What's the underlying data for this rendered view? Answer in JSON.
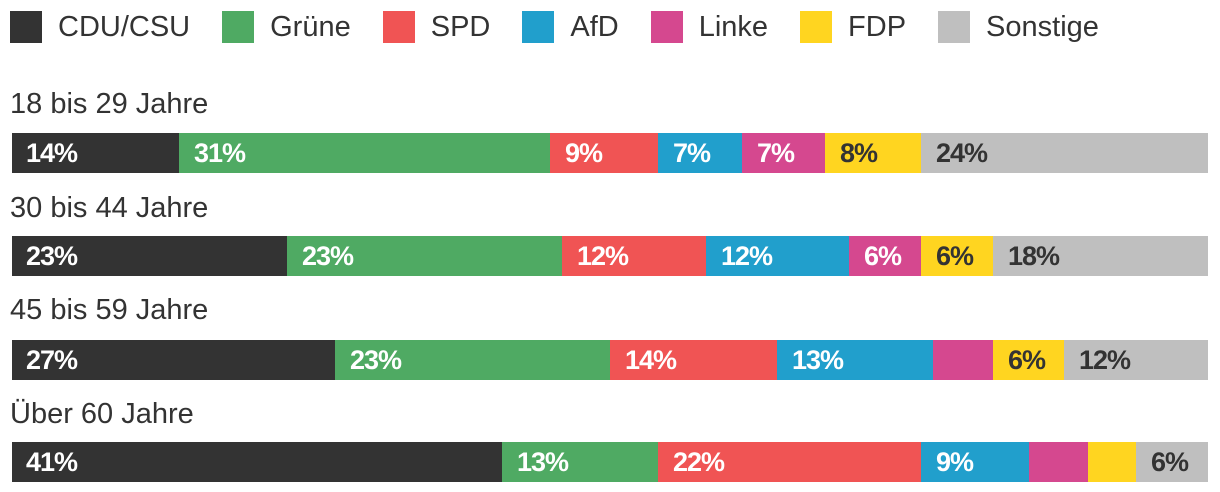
{
  "chart_data": {
    "type": "bar",
    "orientation": "horizontal",
    "stacked": true,
    "unit": "%",
    "legend_position": "top-left",
    "series": [
      {
        "name": "CDU/CSU",
        "color": "#333333",
        "label_color": "#ffffff",
        "values": [
          14,
          23,
          27,
          41
        ],
        "labels": [
          "14%",
          "23%",
          "27%",
          "41%"
        ]
      },
      {
        "name": "Grüne",
        "color": "#4faa63",
        "label_color": "#ffffff",
        "values": [
          31,
          23,
          23,
          13
        ],
        "labels": [
          "31%",
          "23%",
          "23%",
          "13%"
        ]
      },
      {
        "name": "SPD",
        "color": "#f05454",
        "label_color": "#ffffff",
        "values": [
          9,
          12,
          14,
          22
        ],
        "labels": [
          "9%",
          "12%",
          "14%",
          "22%"
        ]
      },
      {
        "name": "AfD",
        "color": "#219fcc",
        "label_color": "#ffffff",
        "values": [
          7,
          12,
          13,
          9
        ],
        "labels": [
          "7%",
          "12%",
          "13%",
          "9%"
        ]
      },
      {
        "name": "Linke",
        "color": "#d5488f",
        "label_color": "#ffffff",
        "values": [
          7,
          6,
          5,
          5
        ],
        "labels": [
          "7%",
          "6%",
          "",
          ""
        ]
      },
      {
        "name": "FDP",
        "color": "#ffd520",
        "label_color": "#333333",
        "values": [
          8,
          6,
          6,
          4
        ],
        "labels": [
          "8%",
          "6%",
          "6%",
          ""
        ]
      },
      {
        "name": "Sonstige",
        "color": "#bfbfbf",
        "label_color": "#333333",
        "values": [
          24,
          18,
          12,
          6
        ],
        "labels": [
          "24%",
          "18%",
          "12%",
          "6%"
        ]
      }
    ],
    "categories": [
      "18 bis 29 Jahre",
      "30 bis 44 Jahre",
      "45 bis 59 Jahre",
      "Über 60 Jahre"
    ]
  }
}
